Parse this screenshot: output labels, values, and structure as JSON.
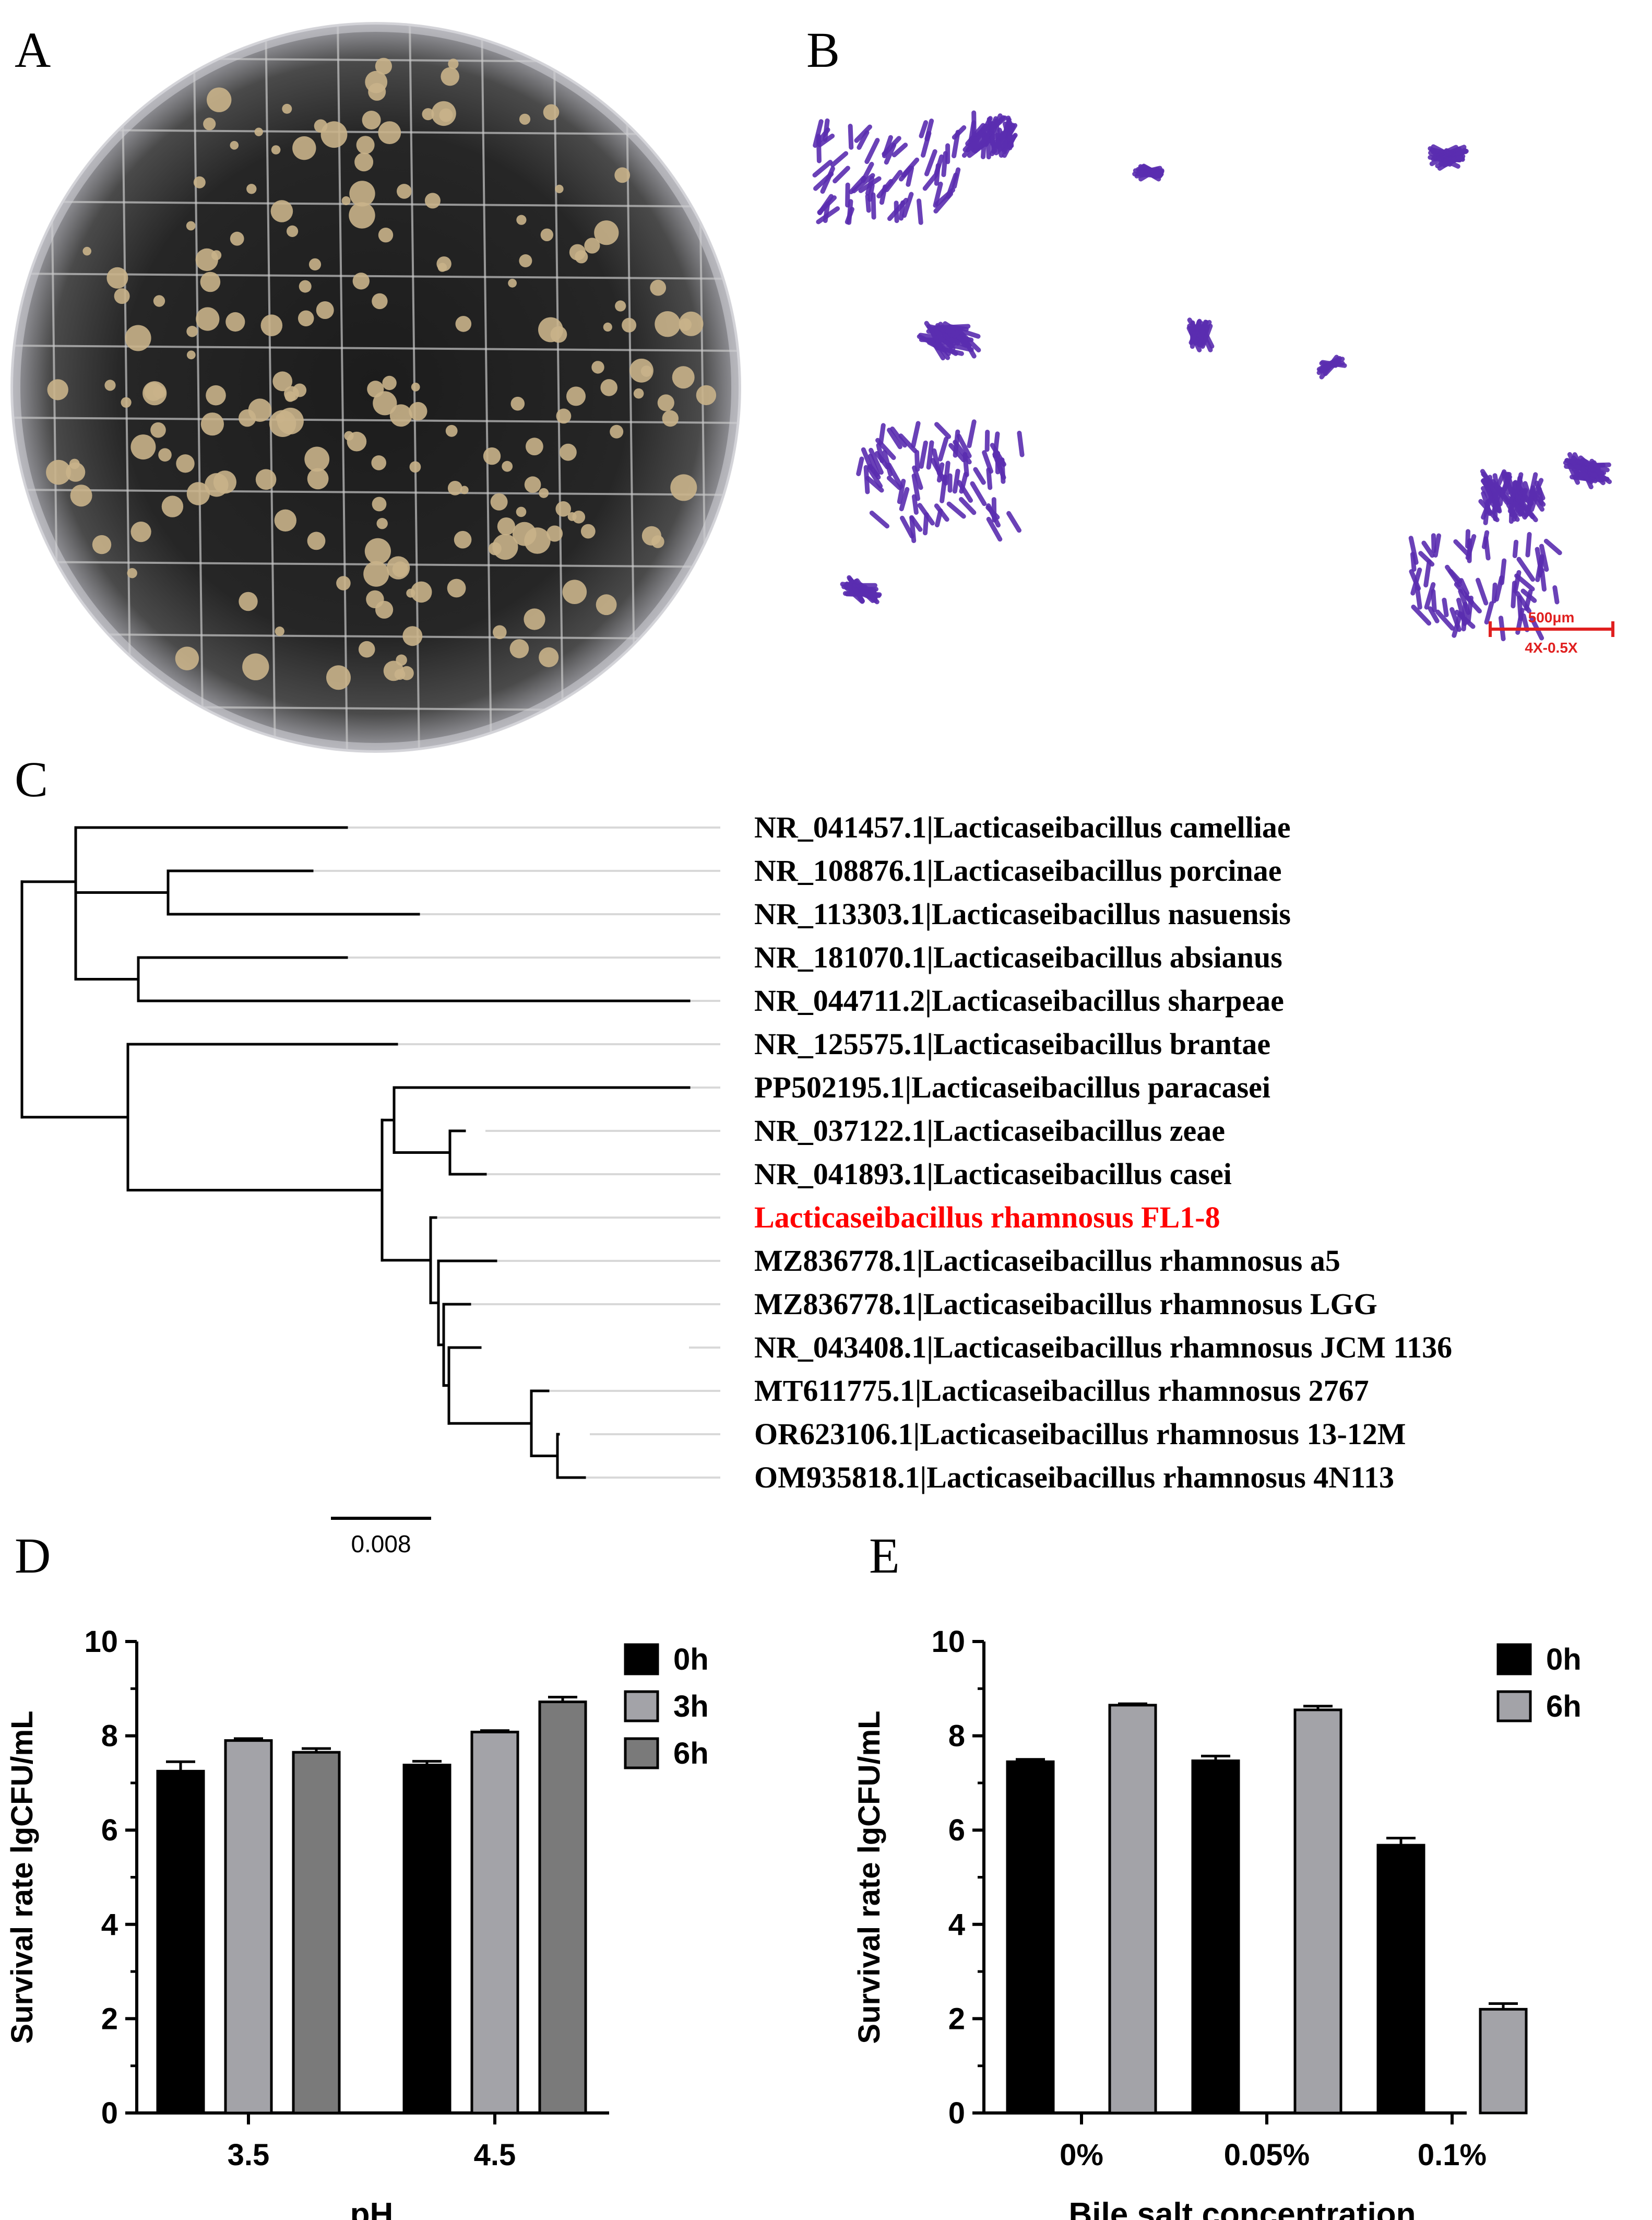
{
  "panels": {
    "A": "A",
    "B": "B",
    "C": "C",
    "D": "D",
    "E": "E"
  },
  "micrograph": {
    "scale_value": "500μm",
    "scale_mag": "4X-0.5X",
    "scale_color": "#e02020",
    "stain_color": "#5a2db0"
  },
  "tree": {
    "scale_label": "0.008",
    "highlight_color": "#ff0000",
    "taxa": [
      "NR_041457.1|Lacticaseibacillus camelliae",
      "NR_108876.1|Lacticaseibacillus porcinae",
      "NR_113303.1|Lacticaseibacillus nasuensis",
      "NR_181070.1|Lacticaseibacillus absianus",
      "NR_044711.2|Lacticaseibacillus sharpeae",
      "NR_125575.1|Lacticaseibacillus brantae",
      "PP502195.1|Lacticaseibacillus paracasei",
      "NR_037122.1|Lacticaseibacillus zeae",
      "NR_041893.1|Lacticaseibacillus casei",
      "Lacticaseibacillus rhamnosus FL1-8",
      "MZ836778.1|Lacticaseibacillus rhamnosus a5",
      "MZ836778.1|Lacticaseibacillus rhamnosus LGG",
      "NR_043408.1|Lacticaseibacillus rhamnosus JCM 1136",
      "MT611775.1|Lacticaseibacillus rhamnosus 2767",
      "OR623106.1|Lacticaseibacillus rhamnosus 13-12M",
      "OM935818.1|Lacticaseibacillus rhamnosus 4N113"
    ]
  },
  "chart_data": [
    {
      "type": "bar",
      "panel": "D",
      "categories": [
        "3.5",
        "4.5"
      ],
      "series": [
        {
          "name": "0h",
          "values": [
            7.25,
            7.38
          ],
          "errors": [
            0.2,
            0.08
          ],
          "color": "#000000"
        },
        {
          "name": "3h",
          "values": [
            7.9,
            8.08
          ],
          "errors": [
            0.04,
            0.03
          ],
          "color": "#a3a3a8"
        },
        {
          "name": "6h",
          "values": [
            7.65,
            8.72
          ],
          "errors": [
            0.08,
            0.1
          ],
          "color": "#7a7a7a"
        }
      ],
      "xlabel": "pH",
      "ylabel": "Survival rate lgCFU/mL",
      "ylim": [
        0,
        10
      ],
      "yticks": [
        "0",
        "2",
        "4",
        "6",
        "8",
        "10"
      ],
      "legend_position": "top-right"
    },
    {
      "type": "bar",
      "panel": "E",
      "categories": [
        "0%",
        "0.05%",
        "0.1%"
      ],
      "series": [
        {
          "name": "0h",
          "values": [
            7.45,
            7.47,
            5.68
          ],
          "errors": [
            0.05,
            0.1,
            0.15
          ],
          "color": "#000000"
        },
        {
          "name": "6h",
          "values": [
            8.65,
            8.55,
            2.2
          ],
          "errors": [
            0.03,
            0.08,
            0.12
          ],
          "color": "#a3a3a8"
        }
      ],
      "xlabel": "Bile salt concentration",
      "ylabel": "Survival rate lgCFU/mL",
      "ylim": [
        0,
        10
      ],
      "yticks": [
        "0",
        "2",
        "4",
        "6",
        "8",
        "10"
      ],
      "legend_position": "top-right"
    }
  ]
}
